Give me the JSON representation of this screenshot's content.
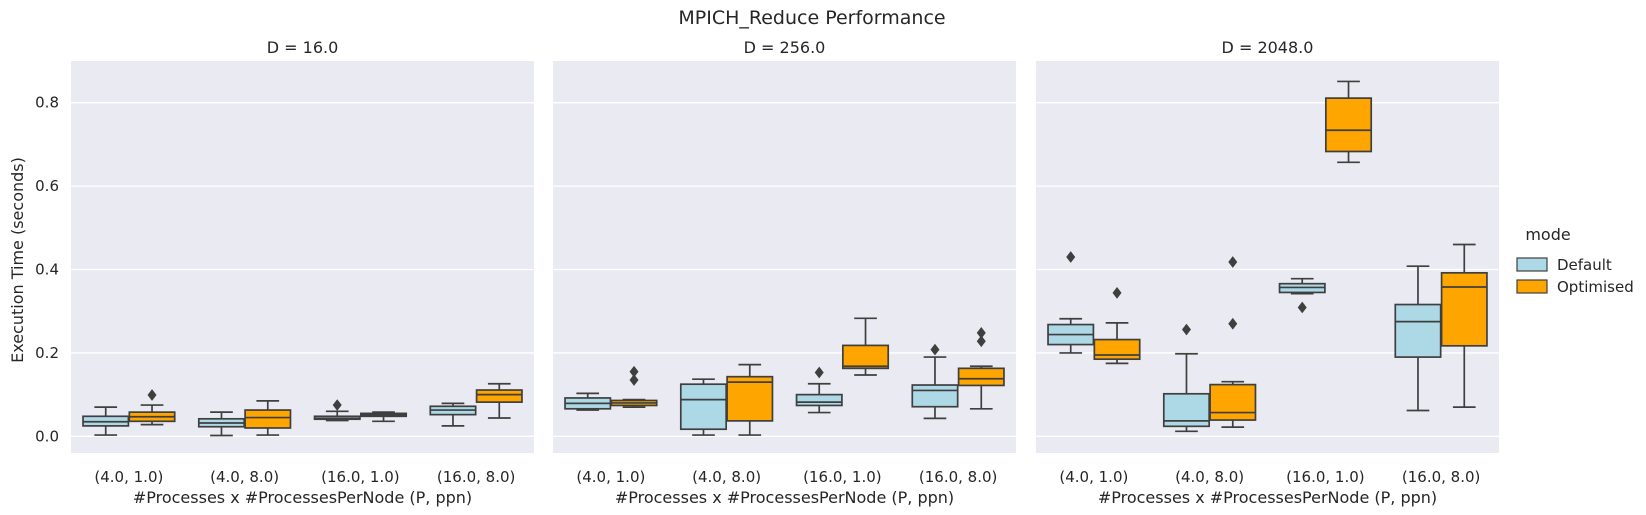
{
  "figure_title": "MPICH_Reduce Performance",
  "chart_data": {
    "type": "box",
    "title": "MPICH_Reduce Performance",
    "ylabel": "Execution Time (seconds)",
    "xlabel": "#Processes x #ProcessesPerNode (P, ppn)",
    "ylim": [
      -0.04,
      0.9
    ],
    "yticks": [
      0.0,
      0.2,
      0.4,
      0.6,
      0.8
    ],
    "ytick_labels": [
      "0.0",
      "0.2",
      "0.4",
      "0.6",
      "0.8"
    ],
    "categories": [
      "(4.0, 1.0)",
      "(4.0, 8.0)",
      "(16.0, 1.0)",
      "(16.0, 8.0)"
    ],
    "grid": true,
    "legend": {
      "title": "mode",
      "placement": "right",
      "entries": [
        {
          "name": "Default",
          "color": "#add8e6"
        },
        {
          "name": "Optimised",
          "color": "#ffa500"
        }
      ]
    },
    "panels": [
      {
        "title": "D = 16.0",
        "series": [
          {
            "name": "Default",
            "boxes": [
              {
                "whislo": 0.003,
                "q1": 0.025,
                "med": 0.035,
                "q3": 0.048,
                "whishi": 0.07,
                "fliers": []
              },
              {
                "whislo": 0.002,
                "q1": 0.023,
                "med": 0.032,
                "q3": 0.042,
                "whishi": 0.058,
                "fliers": []
              },
              {
                "whislo": 0.038,
                "q1": 0.041,
                "med": 0.043,
                "q3": 0.048,
                "whishi": 0.06,
                "fliers": [
                  0.075
                ]
              },
              {
                "whislo": 0.025,
                "q1": 0.052,
                "med": 0.063,
                "q3": 0.072,
                "whishi": 0.079,
                "fliers": []
              }
            ]
          },
          {
            "name": "Optimised",
            "boxes": [
              {
                "whislo": 0.028,
                "q1": 0.036,
                "med": 0.047,
                "q3": 0.058,
                "whishi": 0.075,
                "fliers": [
                  0.099
                ]
              },
              {
                "whislo": 0.003,
                "q1": 0.02,
                "med": 0.045,
                "q3": 0.063,
                "whishi": 0.085,
                "fliers": []
              },
              {
                "whislo": 0.036,
                "q1": 0.048,
                "med": 0.052,
                "q3": 0.055,
                "whishi": 0.058,
                "fliers": []
              },
              {
                "whislo": 0.044,
                "q1": 0.082,
                "med": 0.1,
                "q3": 0.111,
                "whishi": 0.126,
                "fliers": []
              }
            ]
          }
        ]
      },
      {
        "title": "D = 256.0",
        "series": [
          {
            "name": "Default",
            "boxes": [
              {
                "whislo": 0.063,
                "q1": 0.066,
                "med": 0.079,
                "q3": 0.092,
                "whishi": 0.103,
                "fliers": []
              },
              {
                "whislo": 0.003,
                "q1": 0.017,
                "med": 0.088,
                "q3": 0.125,
                "whishi": 0.137,
                "fliers": []
              },
              {
                "whislo": 0.057,
                "q1": 0.074,
                "med": 0.082,
                "q3": 0.1,
                "whishi": 0.126,
                "fliers": [
                  0.153
                ]
              },
              {
                "whislo": 0.043,
                "q1": 0.071,
                "med": 0.11,
                "q3": 0.123,
                "whishi": 0.19,
                "fliers": [
                  0.208
                ]
              }
            ]
          },
          {
            "name": "Optimised",
            "boxes": [
              {
                "whislo": 0.07,
                "q1": 0.074,
                "med": 0.08,
                "q3": 0.086,
                "whishi": 0.088,
                "fliers": [
                  0.135,
                  0.155
                ]
              },
              {
                "whislo": 0.003,
                "q1": 0.037,
                "med": 0.13,
                "q3": 0.143,
                "whishi": 0.172,
                "fliers": []
              },
              {
                "whislo": 0.147,
                "q1": 0.163,
                "med": 0.168,
                "q3": 0.218,
                "whishi": 0.283,
                "fliers": []
              },
              {
                "whislo": 0.066,
                "q1": 0.122,
                "med": 0.138,
                "q3": 0.163,
                "whishi": 0.168,
                "fliers": [
                  0.228,
                  0.248
                ]
              }
            ]
          }
        ]
      },
      {
        "title": "D = 2048.0",
        "series": [
          {
            "name": "Default",
            "boxes": [
              {
                "whislo": 0.2,
                "q1": 0.22,
                "med": 0.244,
                "q3": 0.268,
                "whishi": 0.282,
                "fliers": [
                  0.43
                ]
              },
              {
                "whislo": 0.012,
                "q1": 0.024,
                "med": 0.037,
                "q3": 0.102,
                "whishi": 0.198,
                "fliers": [
                  0.256
                ]
              },
              {
                "whislo": 0.342,
                "q1": 0.345,
                "med": 0.357,
                "q3": 0.366,
                "whishi": 0.378,
                "fliers": [
                  0.309
                ]
              },
              {
                "whislo": 0.062,
                "q1": 0.19,
                "med": 0.275,
                "q3": 0.316,
                "whishi": 0.408,
                "fliers": []
              }
            ]
          },
          {
            "name": "Optimised",
            "boxes": [
              {
                "whislo": 0.175,
                "q1": 0.185,
                "med": 0.195,
                "q3": 0.232,
                "whishi": 0.272,
                "fliers": [
                  0.344
                ]
              },
              {
                "whislo": 0.022,
                "q1": 0.039,
                "med": 0.057,
                "q3": 0.124,
                "whishi": 0.131,
                "fliers": [
                  0.27,
                  0.418
                ]
              },
              {
                "whislo": 0.657,
                "q1": 0.683,
                "med": 0.734,
                "q3": 0.811,
                "whishi": 0.851,
                "fliers": []
              },
              {
                "whislo": 0.07,
                "q1": 0.217,
                "med": 0.358,
                "q3": 0.392,
                "whishi": 0.46,
                "fliers": []
              }
            ]
          }
        ]
      }
    ]
  }
}
